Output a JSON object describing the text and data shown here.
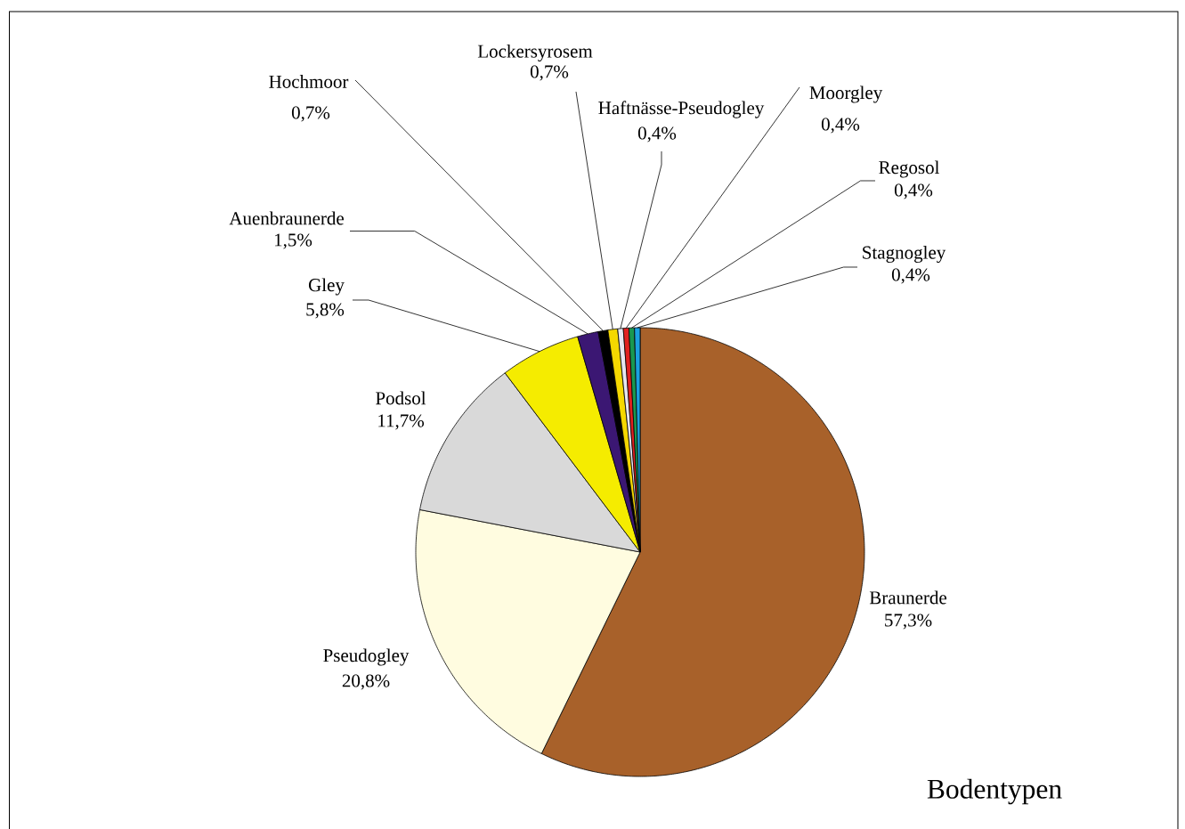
{
  "chart_data": {
    "type": "pie",
    "title": "Bodentypen",
    "categories": [
      "Braunerde",
      "Pseudogley",
      "Podsol",
      "Gley",
      "Auenbraunerde",
      "Hochmoor",
      "Lockersyrosem",
      "Haftnässe-Pseudogley",
      "Moorgley",
      "Regosol",
      "Stagnogley"
    ],
    "values": [
      57.3,
      20.8,
      11.7,
      5.8,
      1.5,
      0.7,
      0.7,
      0.4,
      0.4,
      0.4,
      0.4
    ],
    "value_labels": [
      "57,3%",
      "20,8%",
      "11,7%",
      "5,8%",
      "1,5%",
      "0,7%",
      "0,7%",
      "0,4%",
      "0,4%",
      "0,4%",
      "0,4%"
    ],
    "colors": [
      "#a8612a",
      "#fffce0",
      "#d9d9d9",
      "#f5ec00",
      "#3b1773",
      "#000000",
      "#f5d800",
      "#e6e6f0",
      "#e02020",
      "#1a9850",
      "#1aa0e0"
    ]
  }
}
